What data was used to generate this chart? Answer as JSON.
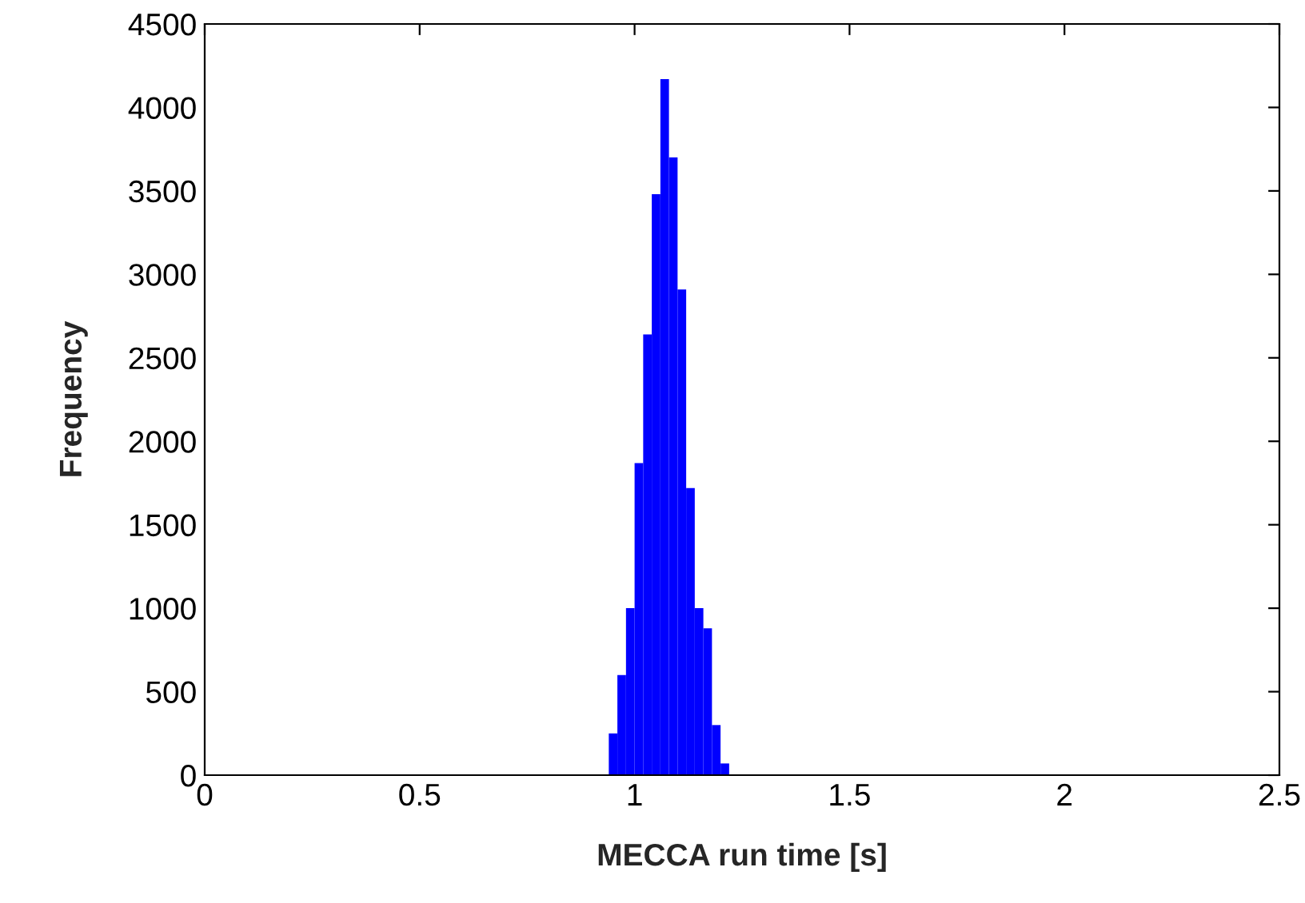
{
  "chart_data": {
    "type": "histogram",
    "xlabel": "MECCA run time [s]",
    "ylabel": "Frequency",
    "bins": [
      0.92,
      0.94,
      0.96,
      0.98,
      1.0,
      1.02,
      1.04,
      1.06,
      1.08,
      1.1,
      1.12,
      1.14,
      1.16,
      1.18,
      1.2,
      1.22,
      1.24
    ],
    "values": [
      null,
      250,
      600,
      1000,
      1870,
      2640,
      3480,
      4170,
      3700,
      2910,
      1720,
      1000,
      880,
      300,
      70,
      null
    ],
    "color": "#0000ff",
    "xlim": [
      0,
      2.5
    ],
    "xticks": [
      0,
      0.5,
      1,
      1.5,
      2,
      2.5
    ],
    "ylim": [
      0,
      4500
    ],
    "yticks": [
      0,
      500,
      1000,
      1500,
      2000,
      2500,
      3000,
      3500,
      4000,
      4500
    ],
    "grid": false
  }
}
